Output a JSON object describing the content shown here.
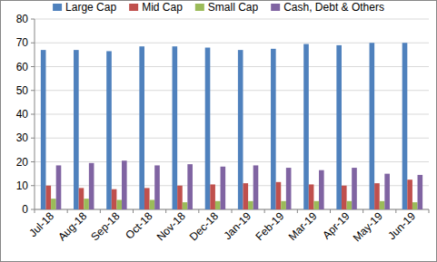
{
  "chart_data": {
    "type": "bar",
    "categories": [
      "Jul-18",
      "Aug-18",
      "Sep-18",
      "Oct-18",
      "Nov-18",
      "Dec-18",
      "Jan-19",
      "Feb-19",
      "Mar-19",
      "Apr-19",
      "May-19",
      "Jun-19"
    ],
    "series": [
      {
        "name": "Large Cap",
        "color": "#4f81bd",
        "values": [
          67,
          67,
          66.5,
          68.5,
          68.5,
          68,
          67,
          67.5,
          69.5,
          69,
          70,
          70
        ]
      },
      {
        "name": "Mid Cap",
        "color": "#c0504d",
        "values": [
          10,
          9,
          8.5,
          9,
          10,
          10.5,
          11,
          11.5,
          10.5,
          10,
          11,
          12.5
        ]
      },
      {
        "name": "Small Cap",
        "color": "#9bbb59",
        "values": [
          4.5,
          4.5,
          4,
          4,
          3,
          3.5,
          3.5,
          3.5,
          3.5,
          3.5,
          3.5,
          3
        ]
      },
      {
        "name": "Cash, Debt & Others",
        "color": "#8064a2",
        "values": [
          18.5,
          19.5,
          20.5,
          18.5,
          19,
          18,
          18.5,
          17.5,
          16.5,
          17.5,
          15,
          14.5
        ]
      }
    ],
    "ylim": [
      0,
      80
    ],
    "yticks": [
      0,
      10,
      20,
      30,
      40,
      50,
      60,
      70,
      80
    ],
    "grid": true,
    "legend": "top"
  }
}
